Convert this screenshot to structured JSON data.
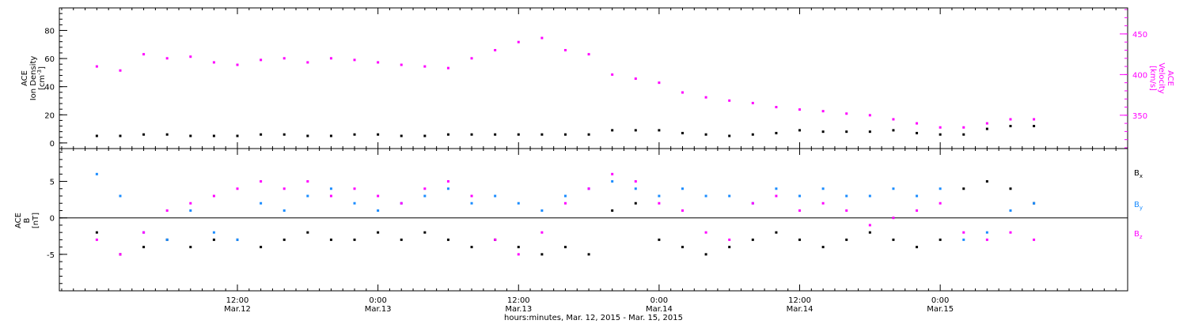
{
  "chart_data": [
    {
      "type": "scatter",
      "panel": "top",
      "left_axis": {
        "label_lines": [
          "ACE",
          "Ion Density"
        ],
        "unit_prefix": "[cm",
        "unit_exp": "-3",
        "unit_suffix": "]",
        "ylim": [
          -4,
          96
        ],
        "ticks": [
          0,
          20,
          40,
          60,
          80
        ],
        "tick_labels": [
          "0",
          "20",
          "40",
          "60",
          "80"
        ],
        "color": "#000000"
      },
      "right_axis": {
        "label_lines": [
          "ACE",
          "Velocity",
          "[km/s]"
        ],
        "ylim": [
          309,
          482
        ],
        "ticks": [
          350,
          400,
          450
        ],
        "tick_labels": [
          "350",
          "400",
          "450"
        ],
        "color": "#ff00ff"
      },
      "series": [
        {
          "role": "density",
          "axis": "left",
          "color": "#000000",
          "x_hours": [
            0,
            2,
            4,
            6,
            8,
            10,
            12,
            14,
            16,
            18,
            20,
            22,
            24,
            26,
            28,
            30,
            32,
            34,
            36,
            38,
            40,
            42,
            44,
            46,
            48,
            50,
            52,
            54,
            56,
            58,
            60,
            62,
            64,
            66,
            68,
            70,
            72,
            74,
            76,
            78,
            80
          ],
          "y": [
            5,
            5,
            6,
            6,
            5,
            5,
            5,
            6,
            6,
            5,
            5,
            6,
            6,
            5,
            5,
            6,
            6,
            6,
            6,
            6,
            6,
            6,
            9,
            9,
            9,
            7,
            6,
            5,
            6,
            7,
            9,
            8,
            8,
            8,
            9,
            7,
            6,
            6,
            10,
            12,
            12
          ]
        },
        {
          "role": "velocity",
          "axis": "right",
          "color": "#ff00ff",
          "x_hours": [
            0,
            2,
            4,
            6,
            8,
            10,
            12,
            14,
            16,
            18,
            20,
            22,
            24,
            26,
            28,
            30,
            32,
            34,
            36,
            38,
            40,
            42,
            44,
            46,
            48,
            50,
            52,
            54,
            56,
            58,
            60,
            62,
            64,
            66,
            68,
            70,
            72,
            74,
            76,
            78,
            80
          ],
          "y": [
            410,
            405,
            425,
            420,
            422,
            415,
            412,
            418,
            420,
            415,
            420,
            418,
            415,
            412,
            410,
            408,
            420,
            430,
            440,
            445,
            430,
            425,
            400,
            395,
            390,
            378,
            372,
            368,
            365,
            360,
            357,
            355,
            352,
            350,
            345,
            340,
            335,
            335,
            340,
            345,
            345
          ]
        }
      ]
    },
    {
      "type": "scatter",
      "panel": "bottom",
      "left_axis": {
        "label_lines": [
          "ACE",
          "B",
          "[nT]"
        ],
        "ylim": [
          -10,
          9.5
        ],
        "ticks": [
          -5,
          0,
          5
        ],
        "tick_labels": [
          "-5",
          "0",
          "5"
        ],
        "zero_line": true
      },
      "legend": [
        {
          "base": "B",
          "sub": "x",
          "color": "#000000"
        },
        {
          "base": "B",
          "sub": "y",
          "color": "#1a8cff"
        },
        {
          "base": "B",
          "sub": "z",
          "color": "#ff00ff"
        }
      ],
      "series": [
        {
          "role": "Bx",
          "color": "#000000",
          "x_hours": [
            0,
            2,
            4,
            6,
            8,
            10,
            12,
            14,
            16,
            18,
            20,
            22,
            24,
            26,
            28,
            30,
            32,
            34,
            36,
            38,
            40,
            42,
            44,
            46,
            48,
            50,
            52,
            54,
            56,
            58,
            60,
            62,
            64,
            66,
            68,
            70,
            72,
            74,
            76,
            78,
            80
          ],
          "y": [
            -2,
            -5,
            -4,
            -3,
            -4,
            -3,
            -3,
            -4,
            -3,
            -2,
            -3,
            -3,
            -2,
            -3,
            -2,
            -3,
            -4,
            -3,
            -4,
            -5,
            -4,
            -5,
            1,
            2,
            -3,
            -4,
            -5,
            -4,
            -3,
            -2,
            -3,
            -4,
            -3,
            -2,
            -3,
            -4,
            -3,
            4,
            5,
            4,
            2
          ]
        },
        {
          "role": "By",
          "color": "#1a8cff",
          "x_hours": [
            0,
            2,
            4,
            6,
            8,
            10,
            12,
            14,
            16,
            18,
            20,
            22,
            24,
            26,
            28,
            30,
            32,
            34,
            36,
            38,
            40,
            42,
            44,
            46,
            48,
            50,
            52,
            54,
            56,
            58,
            60,
            62,
            64,
            66,
            68,
            70,
            72,
            74,
            76,
            78,
            80
          ],
          "y": [
            6,
            3,
            -2,
            -3,
            1,
            -2,
            -3,
            2,
            1,
            3,
            4,
            2,
            1,
            2,
            3,
            4,
            2,
            3,
            2,
            1,
            3,
            4,
            5,
            4,
            3,
            4,
            3,
            3,
            2,
            4,
            3,
            4,
            3,
            3,
            4,
            3,
            4,
            -3,
            -2,
            1,
            2
          ]
        },
        {
          "role": "Bz",
          "color": "#ff00ff",
          "x_hours": [
            0,
            2,
            4,
            6,
            8,
            10,
            12,
            14,
            16,
            18,
            20,
            22,
            24,
            26,
            28,
            30,
            32,
            34,
            36,
            38,
            40,
            42,
            44,
            46,
            48,
            50,
            52,
            54,
            56,
            58,
            60,
            62,
            64,
            66,
            68,
            70,
            72,
            74,
            76,
            78,
            80
          ],
          "y": [
            -3,
            -5,
            -2,
            1,
            2,
            3,
            4,
            5,
            4,
            5,
            3,
            4,
            3,
            2,
            4,
            5,
            3,
            -3,
            -5,
            -2,
            2,
            4,
            6,
            5,
            2,
            1,
            -2,
            -3,
            2,
            3,
            1,
            2,
            1,
            -1,
            0,
            1,
            2,
            -2,
            -3,
            -2,
            -3
          ]
        }
      ]
    }
  ],
  "x_axis": {
    "xlim_hours": [
      -3.2,
      88
    ],
    "major_ticks_hours": [
      12,
      24,
      36,
      48,
      60,
      72
    ],
    "minor_step_hours": 1,
    "time_labels": [
      "12:00",
      "0:00",
      "12:00",
      "0:00",
      "12:00",
      "0:00"
    ],
    "date_labels": [
      "Mar.12",
      "Mar.13",
      "Mar.13",
      "Mar.14",
      "Mar.14",
      "Mar.15"
    ],
    "title": "hours:minutes, Mar. 12, 2015 - Mar. 15, 2015"
  }
}
